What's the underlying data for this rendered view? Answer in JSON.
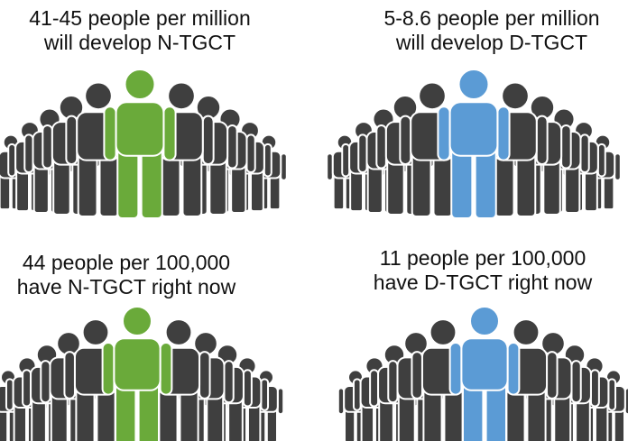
{
  "panels": [
    {
      "line1": "41-45 people per million",
      "line2": "will develop N-TGCT"
    },
    {
      "line1": "5-8.6 people per million",
      "line2": "will develop D-TGCT"
    },
    {
      "line1": "44 people per 100,000",
      "line2": "have N-TGCT right now"
    },
    {
      "line1": "11 people per 100,000",
      "line2": "have D-TGCT right now"
    }
  ]
}
